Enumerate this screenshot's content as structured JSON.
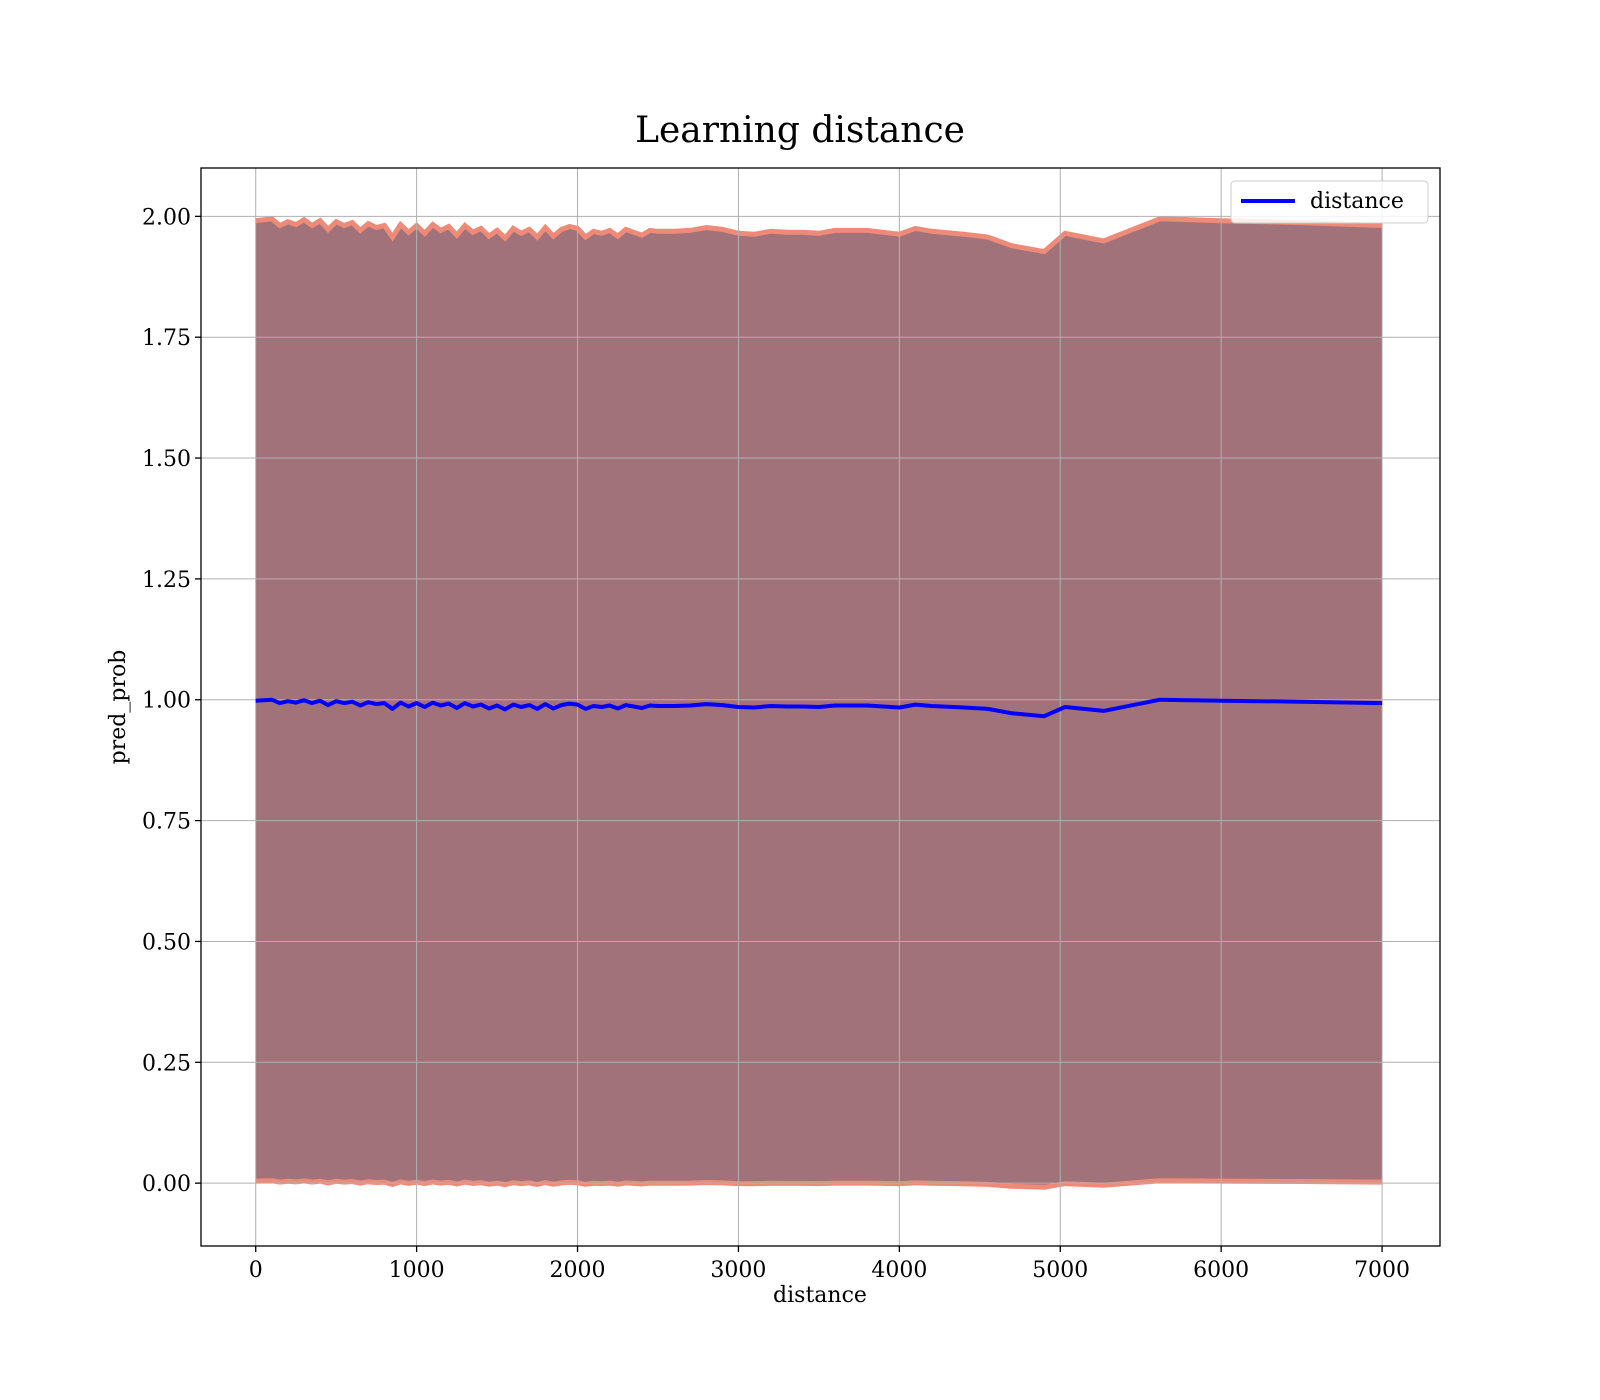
{
  "chart_data": {
    "type": "line",
    "title": "Learning distance",
    "xlabel": "distance",
    "ylabel": "pred_prob",
    "xlim": [
      -340,
      7360
    ],
    "ylim": [
      -0.13,
      2.1
    ],
    "xticks": [
      "0",
      "1000",
      "2000",
      "3000",
      "4000",
      "5000",
      "6000",
      "7000"
    ],
    "yticks": [
      "0.00",
      "0.25",
      "0.50",
      "0.75",
      "1.00",
      "1.25",
      "1.50",
      "1.75",
      "2.00"
    ],
    "grid": true,
    "legend_position": "top-right",
    "colors": {
      "line": "#0000ff",
      "band_fill": "#a2727a",
      "band_edge": "#ee8a78"
    },
    "series": [
      {
        "name": "distance",
        "x": [
          0,
          100,
          150,
          200,
          250,
          300,
          350,
          400,
          450,
          500,
          550,
          600,
          650,
          700,
          750,
          800,
          850,
          900,
          950,
          1000,
          1050,
          1100,
          1150,
          1200,
          1250,
          1300,
          1350,
          1400,
          1450,
          1500,
          1550,
          1600,
          1650,
          1700,
          1750,
          1800,
          1850,
          1900,
          1950,
          2000,
          2050,
          2100,
          2150,
          2200,
          2250,
          2300,
          2350,
          2400,
          2450,
          2500,
          2600,
          2700,
          2800,
          2900,
          3000,
          3100,
          3200,
          3300,
          3400,
          3500,
          3600,
          3700,
          3800,
          3900,
          4000,
          4100,
          4200,
          4400,
          4550,
          4700,
          4900,
          5030,
          5270,
          5620,
          6000,
          6500,
          7000
        ],
        "y": [
          0.998,
          1.0,
          0.993,
          0.997,
          0.994,
          0.999,
          0.993,
          0.998,
          0.989,
          0.997,
          0.993,
          0.996,
          0.988,
          0.995,
          0.991,
          0.993,
          0.981,
          0.994,
          0.986,
          0.993,
          0.985,
          0.994,
          0.988,
          0.992,
          0.983,
          0.993,
          0.986,
          0.99,
          0.982,
          0.988,
          0.98,
          0.99,
          0.985,
          0.989,
          0.981,
          0.991,
          0.982,
          0.989,
          0.992,
          0.99,
          0.981,
          0.987,
          0.985,
          0.988,
          0.982,
          0.989,
          0.986,
          0.983,
          0.988,
          0.987,
          0.987,
          0.988,
          0.991,
          0.989,
          0.985,
          0.984,
          0.987,
          0.986,
          0.986,
          0.985,
          0.988,
          0.988,
          0.988,
          0.986,
          0.984,
          0.99,
          0.987,
          0.984,
          0.981,
          0.972,
          0.966,
          0.985,
          0.977,
          1.0,
          0.998,
          0.996,
          0.993
        ]
      }
    ]
  }
}
